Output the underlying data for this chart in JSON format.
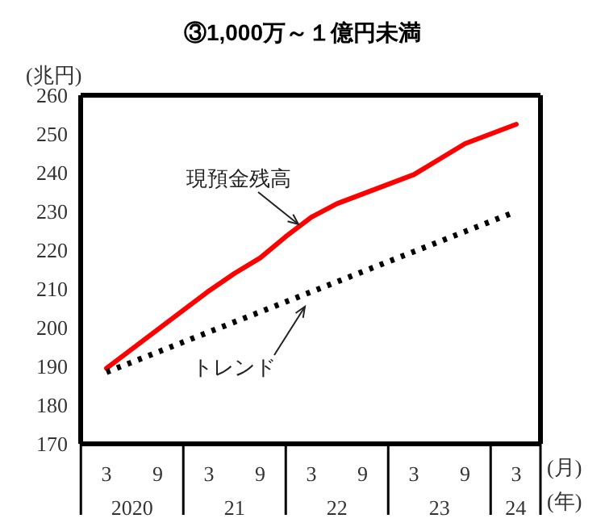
{
  "chart_data": {
    "type": "line",
    "title": "③1,000万～１億円未満",
    "ylabel": "(兆円)",
    "xlabel": "(月)",
    "categories": [
      "3",
      null,
      "9",
      null,
      "3",
      null,
      "9",
      null,
      "3",
      null,
      "9",
      null,
      "3",
      null,
      "9",
      null,
      "3"
    ],
    "series": [
      {
        "name": "現預金残高",
        "color": "#ff0000",
        "line_style": "solid",
        "values": [
          189.5,
          194.5,
          199.5,
          204.5,
          209.5,
          214,
          218,
          223.5,
          228.5,
          232,
          234.5,
          237,
          239.5,
          243.5,
          247.5,
          250,
          252.5
        ]
      },
      {
        "name": "トレンド",
        "color": "#000000",
        "line_style": "dotted",
        "values": [
          188.5,
          null,
          null,
          null,
          null,
          null,
          null,
          null,
          null,
          null,
          null,
          null,
          null,
          null,
          null,
          null,
          230
        ]
      }
    ],
    "ylim": [
      170,
      260
    ],
    "yticks": [
      170,
      180,
      190,
      200,
      210,
      220,
      230,
      240,
      250,
      260
    ],
    "grid": false,
    "marker": "none",
    "annotations": [
      "2020",
      "21",
      "22",
      "23",
      "24",
      "(年)"
    ]
  }
}
